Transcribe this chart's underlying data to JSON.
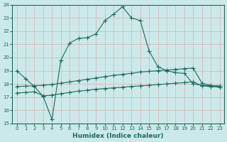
{
  "xlabel": "Humidex (Indice chaleur)",
  "xlim": [
    -0.5,
    23.5
  ],
  "ylim": [
    15,
    24
  ],
  "xticks": [
    0,
    1,
    2,
    3,
    4,
    5,
    6,
    7,
    8,
    9,
    10,
    11,
    12,
    13,
    14,
    15,
    16,
    17,
    18,
    19,
    20,
    21,
    22,
    23
  ],
  "yticks": [
    15,
    16,
    17,
    18,
    19,
    20,
    21,
    22,
    23,
    24
  ],
  "bg_color": "#cce9e9",
  "line_color": "#1a6b5a",
  "grid_color": "#d9b8b8",
  "line1_x": [
    0,
    1,
    2,
    3,
    4,
    5,
    6,
    7,
    8,
    9,
    10,
    11,
    12,
    13,
    14,
    15,
    16,
    17,
    18,
    19,
    20,
    21,
    22,
    23
  ],
  "line1_y": [
    19.0,
    18.4,
    17.8,
    17.05,
    15.3,
    19.8,
    21.1,
    21.45,
    21.5,
    21.8,
    22.8,
    23.3,
    23.85,
    23.0,
    22.8,
    20.5,
    19.3,
    19.0,
    18.85,
    18.8,
    18.0,
    17.9,
    17.85,
    17.85
  ],
  "line2_x": [
    0,
    1,
    2,
    3,
    4,
    5,
    6,
    7,
    8,
    9,
    10,
    11,
    12,
    13,
    14,
    15,
    16,
    17,
    18,
    19,
    20,
    21,
    22,
    23
  ],
  "line2_y": [
    17.8,
    17.83,
    17.86,
    17.9,
    17.95,
    18.05,
    18.15,
    18.25,
    18.35,
    18.45,
    18.55,
    18.65,
    18.72,
    18.8,
    18.9,
    18.95,
    19.0,
    19.05,
    19.1,
    19.15,
    19.2,
    18.05,
    17.88,
    17.82
  ],
  "line3_x": [
    0,
    1,
    2,
    3,
    4,
    5,
    6,
    7,
    8,
    9,
    10,
    11,
    12,
    13,
    14,
    15,
    16,
    17,
    18,
    19,
    20,
    21,
    22,
    23
  ],
  "line3_y": [
    17.3,
    17.35,
    17.4,
    17.1,
    17.15,
    17.25,
    17.35,
    17.45,
    17.52,
    17.6,
    17.65,
    17.7,
    17.75,
    17.8,
    17.85,
    17.9,
    17.95,
    18.0,
    18.05,
    18.1,
    18.15,
    17.85,
    17.8,
    17.75
  ]
}
